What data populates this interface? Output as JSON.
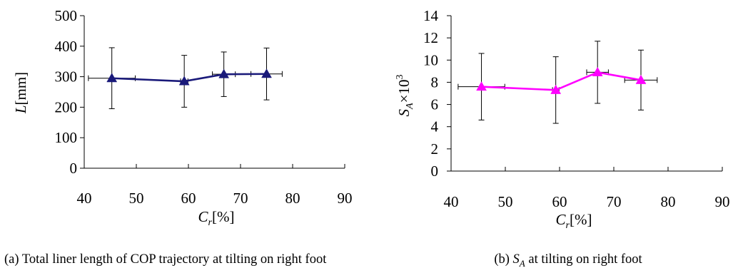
{
  "chart_data": [
    {
      "type": "line",
      "x": [
        45.3,
        59.2,
        66.8,
        75.0
      ],
      "xerr": [
        4.5,
        0.7,
        2.2,
        3.0
      ],
      "series": [
        {
          "values": [
            295,
            285,
            308,
            309
          ],
          "yerr": [
            100,
            85,
            73,
            85
          ],
          "color": "#1a1a7a",
          "marker": "triangle"
        }
      ],
      "xlim": [
        40,
        90
      ],
      "ylim": [
        0,
        500
      ],
      "xticks": [
        "40",
        "50",
        "60",
        "70",
        "80",
        "90"
      ],
      "yticks": [
        "0",
        "100",
        "200",
        "300",
        "400",
        "500"
      ],
      "xlabel": {
        "main": "C",
        "sub": "r",
        "rest": "[%]"
      },
      "ylabel": {
        "main": "L",
        "rest": "[mm]"
      },
      "caption": {
        "pre": "(a) Total liner length of COP trajectory at tilting on right foot"
      }
    },
    {
      "type": "line",
      "x": [
        45.6,
        59.3,
        67.0,
        75.0
      ],
      "xerr": [
        4.3,
        0.6,
        2.0,
        3.0
      ],
      "series": [
        {
          "values": [
            7.6,
            7.3,
            8.9,
            8.2
          ],
          "yerr": [
            3.0,
            3.0,
            2.8,
            2.7
          ],
          "color": "#ff00ff",
          "marker": "triangle"
        }
      ],
      "xlim": [
        40,
        90
      ],
      "ylim": [
        0,
        14
      ],
      "xticks": [
        "40",
        "50",
        "60",
        "70",
        "80",
        "90"
      ],
      "yticks": [
        "0",
        "2",
        "4",
        "6",
        "8",
        "10",
        "12",
        "14"
      ],
      "xlabel": {
        "main": "C",
        "sub": "r",
        "rest": "[%]"
      },
      "ylabel": {
        "main": "S",
        "sub": "A",
        "rest": "×10",
        "sup": "3"
      },
      "caption": {
        "pre": "(b) ",
        "main": "S",
        "sub": "A",
        "post": " at tilting on right foot"
      }
    }
  ]
}
